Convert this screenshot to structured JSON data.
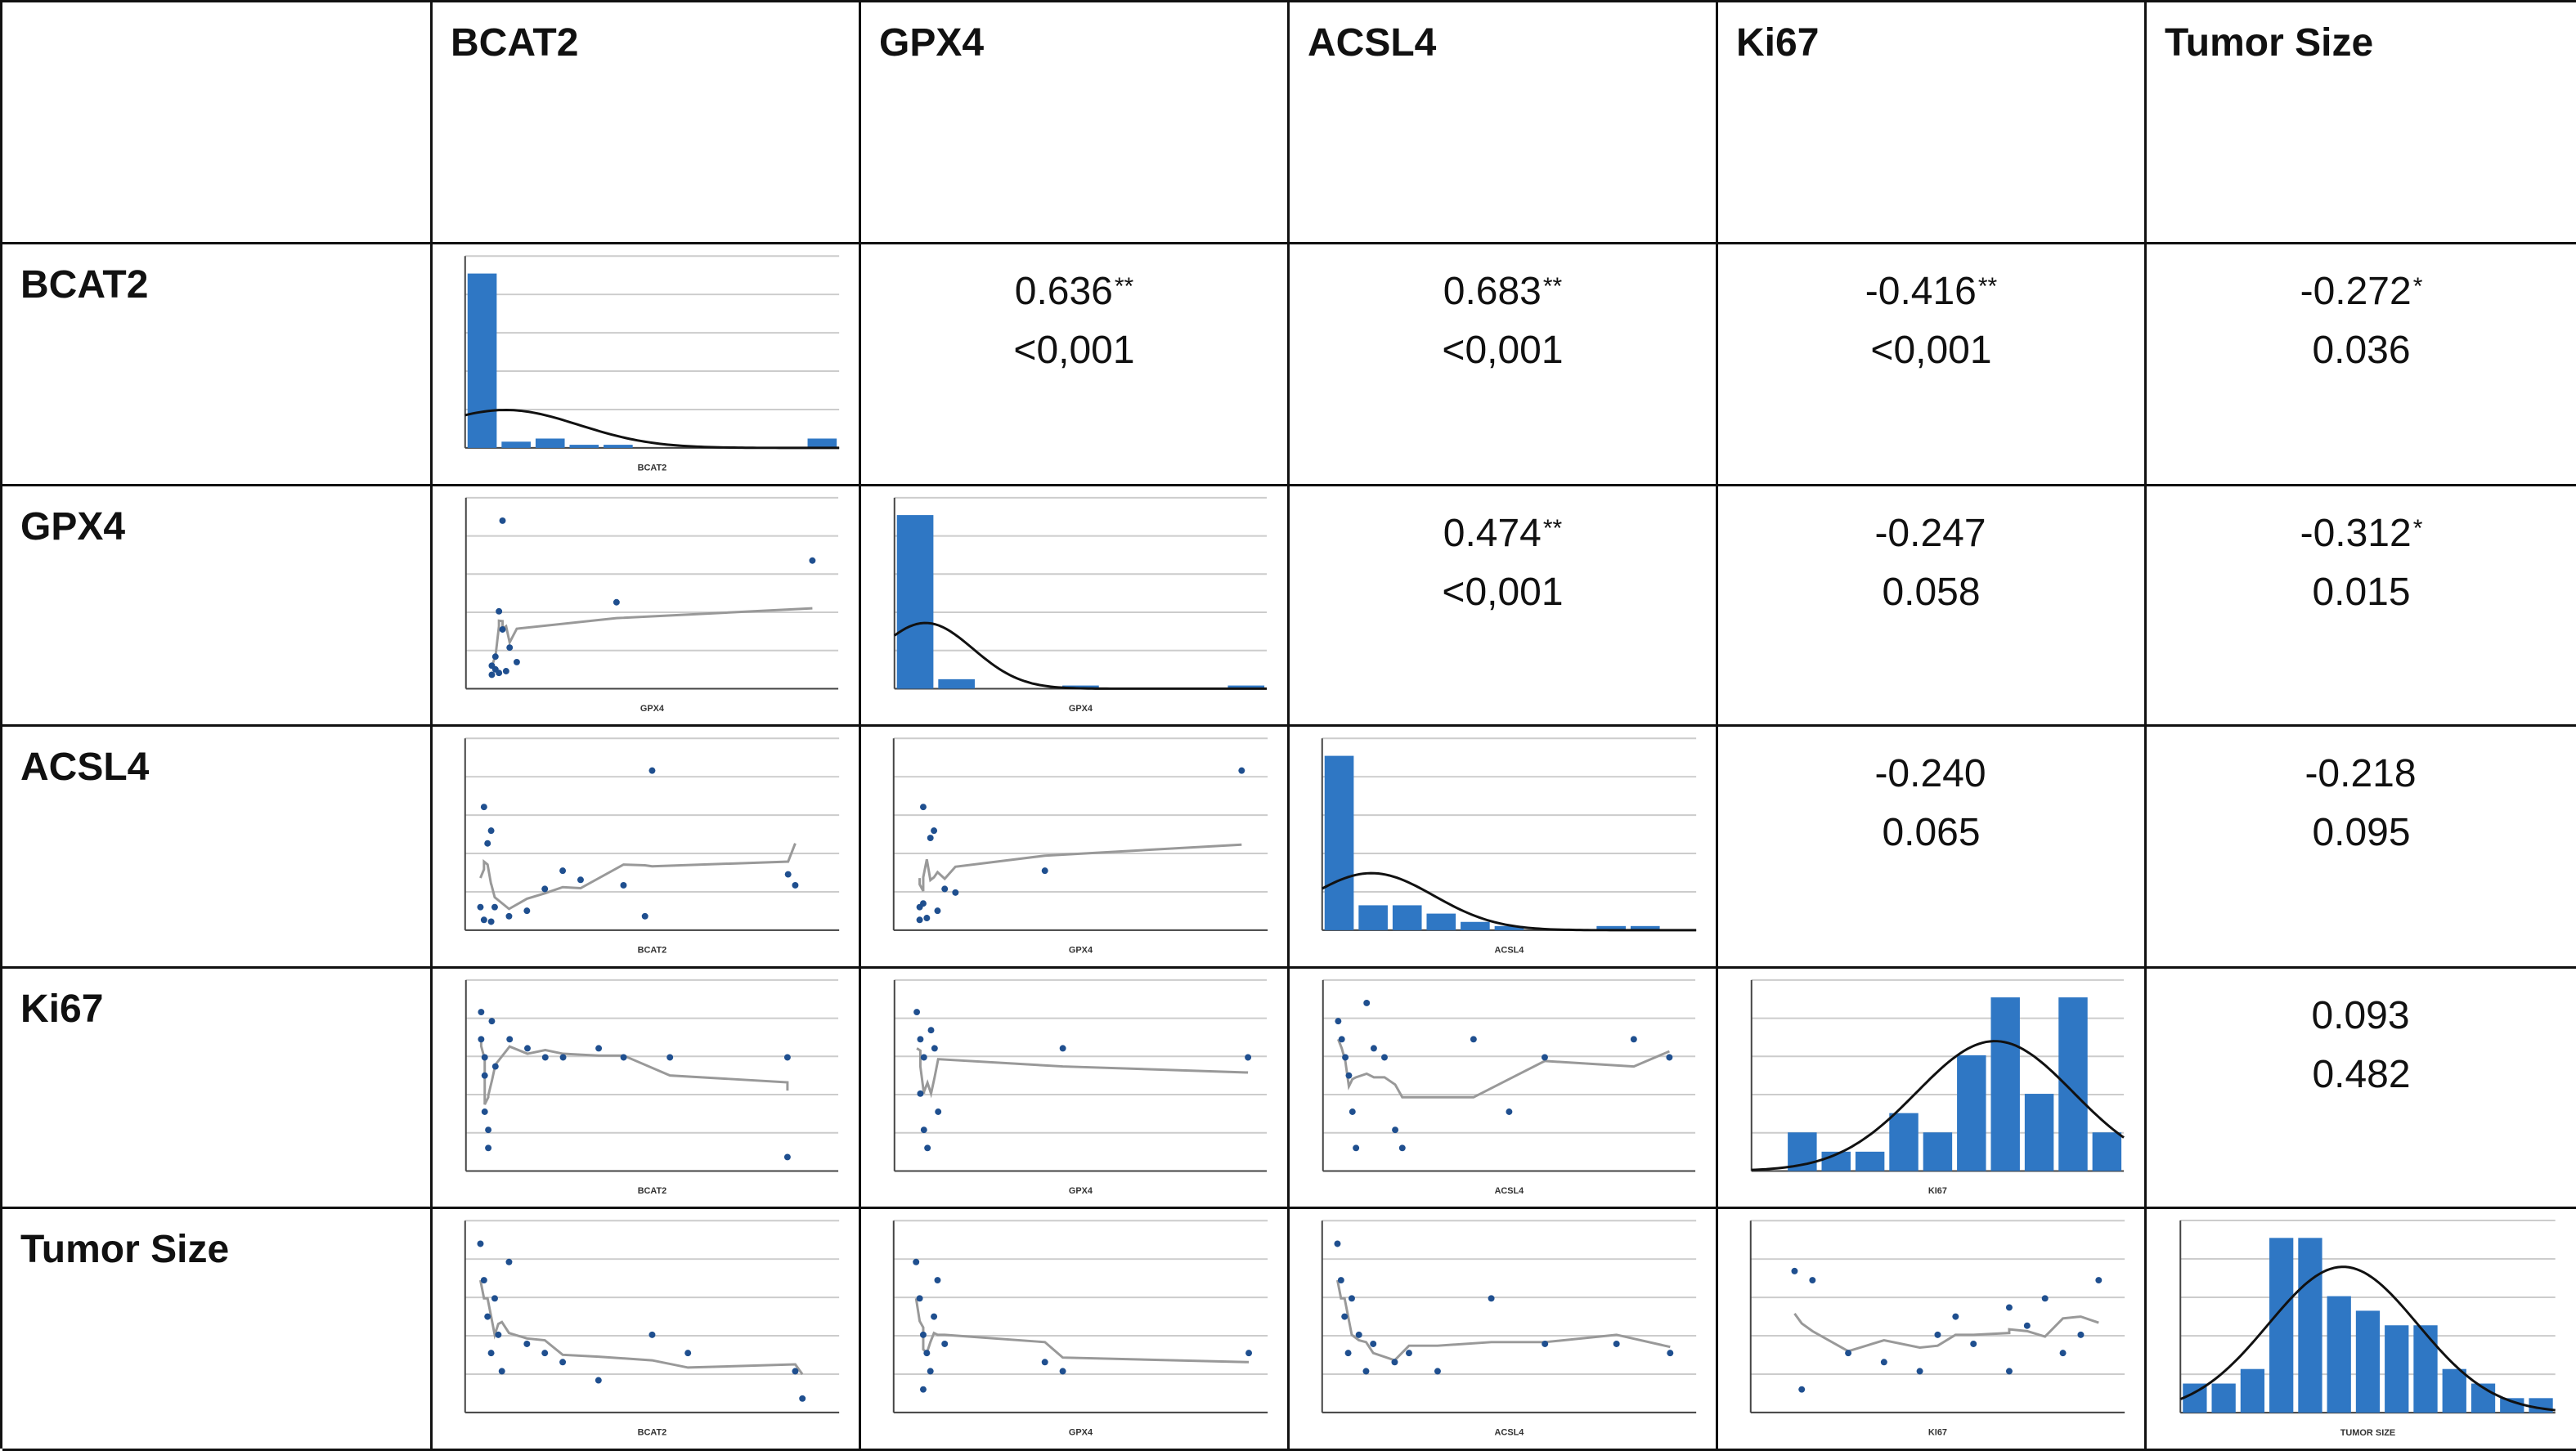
{
  "columns": [
    "BCAT2",
    "GPX4",
    "ACSL4",
    "Ki67",
    "Tumor Size"
  ],
  "rows": [
    "BCAT2",
    "GPX4",
    "ACSL4",
    "Ki67",
    "Tumor Size"
  ],
  "correlations": {
    "BCAT2_GPX4": {
      "r": "0.636",
      "sig": "**",
      "p": "<0,001"
    },
    "BCAT2_ACSL4": {
      "r": "0.683",
      "sig": "**",
      "p": "<0,001"
    },
    "BCAT2_Ki67": {
      "r": "-0.416",
      "sig": "**",
      "p": "<0,001"
    },
    "BCAT2_Tumor": {
      "r": "-0.272",
      "sig": "*",
      "p": "0.036"
    },
    "GPX4_ACSL4": {
      "r": "0.474",
      "sig": "**",
      "p": "<0,001"
    },
    "GPX4_Ki67": {
      "r": "-0.247",
      "sig": "",
      "p": "0.058"
    },
    "GPX4_Tumor": {
      "r": "-0.312",
      "sig": "*",
      "p": "0.015"
    },
    "ACSL4_Ki67": {
      "r": "-0.240",
      "sig": "",
      "p": "0.065"
    },
    "ACSL4_Tumor": {
      "r": "-0.218",
      "sig": "",
      "p": "0.095"
    },
    "Ki67_Tumor": {
      "r": "0.093",
      "sig": "",
      "p": "0.482"
    }
  },
  "axis_labels": {
    "BCAT2": "BCAT2",
    "GPX4": "GPX4",
    "ACSL4": "ACSL4",
    "Ki67": "KI67",
    "Tumor": "TUMOR SIZE"
  },
  "colors": {
    "bar": "#2f77c4",
    "curve": "#111111",
    "point": "#1f4f8f",
    "loess": "#999999",
    "grid": "#cccccc"
  },
  "chart_data": [
    {
      "type": "bar",
      "title": "",
      "variable": "BCAT2",
      "xlabel": "BCAT2",
      "values": [
        56,
        2,
        3,
        1,
        1,
        0,
        0,
        0,
        0,
        0,
        3
      ],
      "curve": "normal"
    },
    {
      "type": "bar",
      "title": "",
      "variable": "GPX4",
      "xlabel": "GPX4",
      "values": [
        55,
        3,
        0,
        0,
        1,
        0,
        0,
        0,
        1
      ],
      "curve": "normal"
    },
    {
      "type": "bar",
      "title": "",
      "variable": "ACSL4",
      "xlabel": "ACSL4",
      "values": [
        42,
        6,
        6,
        4,
        2,
        1,
        0,
        0,
        1,
        1,
        0
      ],
      "curve": "normal"
    },
    {
      "type": "bar",
      "title": "",
      "variable": "Ki67",
      "xlabel": "KI67",
      "values": [
        0,
        2,
        1,
        1,
        3,
        2,
        6,
        9,
        4,
        9,
        2
      ],
      "curve": "normal"
    },
    {
      "type": "bar",
      "title": "",
      "variable": "Tumor Size",
      "xlabel": "TUMOR SIZE",
      "values": [
        2,
        2,
        3,
        12,
        12,
        8,
        7,
        6,
        6,
        3,
        2,
        1,
        1
      ],
      "curve": "normal"
    },
    {
      "type": "scatter",
      "xvar": "GPX4",
      "yvar": "BCAT2",
      "points": [
        [
          0.05,
          0.1
        ],
        [
          0.06,
          0.15
        ],
        [
          0.08,
          0.9
        ],
        [
          0.07,
          0.4
        ],
        [
          0.08,
          0.3
        ],
        [
          0.1,
          0.2
        ],
        [
          0.12,
          0.12
        ],
        [
          0.05,
          0.05
        ],
        [
          0.06,
          0.08
        ],
        [
          0.4,
          0.45
        ],
        [
          0.95,
          0.68
        ],
        [
          0.07,
          0.06
        ],
        [
          0.09,
          0.07
        ]
      ]
    },
    {
      "type": "scatter",
      "xvar": "BCAT2",
      "yvar": "ACSL4",
      "points": [
        [
          0.02,
          0.1
        ],
        [
          0.03,
          0.65
        ],
        [
          0.04,
          0.45
        ],
        [
          0.05,
          0.52
        ],
        [
          0.06,
          0.1
        ],
        [
          0.1,
          0.05
        ],
        [
          0.15,
          0.08
        ],
        [
          0.25,
          0.3
        ],
        [
          0.2,
          0.2
        ],
        [
          0.3,
          0.25
        ],
        [
          0.5,
          0.85
        ],
        [
          0.42,
          0.22
        ],
        [
          0.48,
          0.05
        ],
        [
          0.88,
          0.28
        ],
        [
          0.9,
          0.22
        ],
        [
          0.03,
          0.03
        ],
        [
          0.05,
          0.02
        ]
      ]
    },
    {
      "type": "scatter",
      "xvar": "GPX4",
      "yvar": "ACSL4",
      "points": [
        [
          0.05,
          0.1
        ],
        [
          0.06,
          0.65
        ],
        [
          0.08,
          0.48
        ],
        [
          0.09,
          0.52
        ],
        [
          0.06,
          0.12
        ],
        [
          0.1,
          0.08
        ],
        [
          0.12,
          0.2
        ],
        [
          0.15,
          0.18
        ],
        [
          0.4,
          0.3
        ],
        [
          0.95,
          0.85
        ],
        [
          0.07,
          0.04
        ],
        [
          0.05,
          0.03
        ]
      ]
    },
    {
      "type": "scatter",
      "xvar": "BCAT2",
      "yvar": "Ki67",
      "points": [
        [
          0.02,
          0.85
        ],
        [
          0.02,
          0.7
        ],
        [
          0.03,
          0.6
        ],
        [
          0.03,
          0.5
        ],
        [
          0.03,
          0.3
        ],
        [
          0.04,
          0.2
        ],
        [
          0.04,
          0.1
        ],
        [
          0.05,
          0.8
        ],
        [
          0.06,
          0.55
        ],
        [
          0.1,
          0.7
        ],
        [
          0.15,
          0.65
        ],
        [
          0.2,
          0.6
        ],
        [
          0.25,
          0.6
        ],
        [
          0.35,
          0.65
        ],
        [
          0.42,
          0.6
        ],
        [
          0.55,
          0.6
        ],
        [
          0.88,
          0.6
        ],
        [
          0.88,
          0.05
        ]
      ]
    },
    {
      "type": "scatter",
      "xvar": "GPX4",
      "yvar": "Ki67",
      "points": [
        [
          0.04,
          0.85
        ],
        [
          0.05,
          0.7
        ],
        [
          0.06,
          0.6
        ],
        [
          0.05,
          0.4
        ],
        [
          0.06,
          0.2
        ],
        [
          0.07,
          0.1
        ],
        [
          0.08,
          0.75
        ],
        [
          0.09,
          0.65
        ],
        [
          0.1,
          0.3
        ],
        [
          0.45,
          0.65
        ],
        [
          0.97,
          0.6
        ]
      ]
    },
    {
      "type": "scatter",
      "xvar": "ACSL4",
      "yvar": "Ki67",
      "points": [
        [
          0.02,
          0.8
        ],
        [
          0.03,
          0.7
        ],
        [
          0.04,
          0.6
        ],
        [
          0.05,
          0.5
        ],
        [
          0.06,
          0.3
        ],
        [
          0.07,
          0.1
        ],
        [
          0.1,
          0.9
        ],
        [
          0.12,
          0.65
        ],
        [
          0.15,
          0.6
        ],
        [
          0.18,
          0.2
        ],
        [
          0.2,
          0.1
        ],
        [
          0.4,
          0.7
        ],
        [
          0.5,
          0.3
        ],
        [
          0.6,
          0.6
        ],
        [
          0.85,
          0.7
        ],
        [
          0.95,
          0.6
        ]
      ]
    },
    {
      "type": "scatter",
      "xvar": "BCAT2",
      "yvar": "Tumor Size",
      "points": [
        [
          0.02,
          0.9
        ],
        [
          0.03,
          0.7
        ],
        [
          0.04,
          0.5
        ],
        [
          0.05,
          0.3
        ],
        [
          0.06,
          0.6
        ],
        [
          0.07,
          0.4
        ],
        [
          0.08,
          0.2
        ],
        [
          0.1,
          0.8
        ],
        [
          0.15,
          0.35
        ],
        [
          0.2,
          0.3
        ],
        [
          0.25,
          0.25
        ],
        [
          0.35,
          0.15
        ],
        [
          0.5,
          0.4
        ],
        [
          0.6,
          0.3
        ],
        [
          0.9,
          0.2
        ],
        [
          0.92,
          0.05
        ]
      ]
    },
    {
      "type": "scatter",
      "xvar": "GPX4",
      "yvar": "Tumor Size",
      "points": [
        [
          0.04,
          0.8
        ],
        [
          0.05,
          0.6
        ],
        [
          0.06,
          0.4
        ],
        [
          0.07,
          0.3
        ],
        [
          0.08,
          0.2
        ],
        [
          0.06,
          0.1
        ],
        [
          0.09,
          0.5
        ],
        [
          0.1,
          0.7
        ],
        [
          0.12,
          0.35
        ],
        [
          0.4,
          0.25
        ],
        [
          0.45,
          0.2
        ],
        [
          0.97,
          0.3
        ]
      ]
    },
    {
      "type": "scatter",
      "xvar": "ACSL4",
      "yvar": "Tumor Size",
      "points": [
        [
          0.02,
          0.9
        ],
        [
          0.03,
          0.7
        ],
        [
          0.04,
          0.5
        ],
        [
          0.05,
          0.3
        ],
        [
          0.06,
          0.6
        ],
        [
          0.08,
          0.4
        ],
        [
          0.1,
          0.2
        ],
        [
          0.12,
          0.35
        ],
        [
          0.18,
          0.25
        ],
        [
          0.22,
          0.3
        ],
        [
          0.3,
          0.2
        ],
        [
          0.45,
          0.6
        ],
        [
          0.6,
          0.35
        ],
        [
          0.8,
          0.35
        ],
        [
          0.95,
          0.3
        ]
      ]
    },
    {
      "type": "scatter",
      "xvar": "Ki67",
      "yvar": "Tumor Size",
      "points": [
        [
          0.1,
          0.75
        ],
        [
          0.12,
          0.1
        ],
        [
          0.15,
          0.7
        ],
        [
          0.25,
          0.3
        ],
        [
          0.35,
          0.25
        ],
        [
          0.45,
          0.2
        ],
        [
          0.5,
          0.4
        ],
        [
          0.55,
          0.5
        ],
        [
          0.6,
          0.35
        ],
        [
          0.7,
          0.55
        ],
        [
          0.7,
          0.2
        ],
        [
          0.75,
          0.45
        ],
        [
          0.8,
          0.6
        ],
        [
          0.85,
          0.3
        ],
        [
          0.9,
          0.4
        ],
        [
          0.95,
          0.7
        ]
      ]
    }
  ]
}
